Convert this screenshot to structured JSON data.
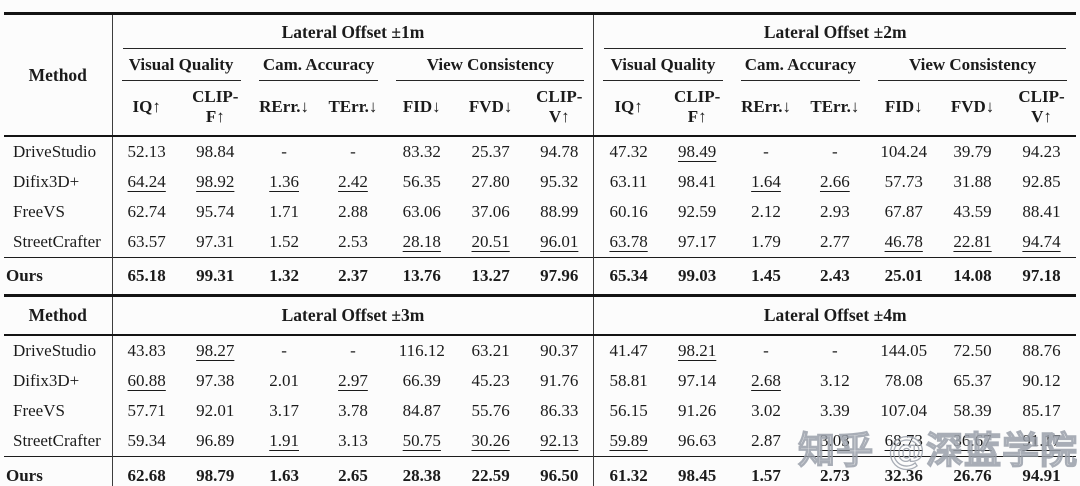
{
  "watermark": "知乎 @深蓝学院",
  "metrics": [
    "IQ↑",
    "CLIP-F↑",
    "RErr.↓",
    "TErr.↓",
    "FID↓",
    "FVD↓",
    "CLIP-V↑"
  ],
  "subgroups": [
    {
      "label": "Visual Quality",
      "span": 2
    },
    {
      "label": "Cam. Accuracy",
      "span": 2
    },
    {
      "label": "View Consistency",
      "span": 3
    }
  ],
  "sections": [
    {
      "method_header": "Method",
      "show_subheaders": true,
      "group_titles": [
        "Lateral Offset ±1m",
        "Lateral Offset ±2m"
      ],
      "rows": [
        {
          "method": "DriveStudio",
          "values": [
            "52.13",
            "98.84",
            "-",
            "-",
            "83.32",
            "25.37",
            "94.78",
            "47.32",
            "98.49",
            "-",
            "-",
            "104.24",
            "39.79",
            "94.23"
          ],
          "underline": [
            8
          ]
        },
        {
          "method": "Difix3D+",
          "values": [
            "64.24",
            "98.92",
            "1.36",
            "2.42",
            "56.35",
            "27.80",
            "95.32",
            "63.11",
            "98.41",
            "1.64",
            "2.66",
            "57.73",
            "31.88",
            "92.85"
          ],
          "underline": [
            0,
            1,
            2,
            3,
            9,
            10
          ]
        },
        {
          "method": "FreeVS",
          "values": [
            "62.74",
            "95.74",
            "1.71",
            "2.88",
            "63.06",
            "37.06",
            "88.99",
            "60.16",
            "92.59",
            "2.12",
            "2.93",
            "67.87",
            "43.59",
            "88.41"
          ],
          "underline": []
        },
        {
          "method": "StreetCrafter",
          "values": [
            "63.57",
            "97.31",
            "1.52",
            "2.53",
            "28.18",
            "20.51",
            "96.01",
            "63.78",
            "97.17",
            "1.79",
            "2.77",
            "46.78",
            "22.81",
            "94.74"
          ],
          "underline": [
            4,
            5,
            6,
            7,
            11,
            12,
            13
          ]
        }
      ],
      "ours": {
        "method": "Ours",
        "values": [
          "65.18",
          "99.31",
          "1.32",
          "2.37",
          "13.76",
          "13.27",
          "97.96",
          "65.34",
          "99.03",
          "1.45",
          "2.43",
          "25.01",
          "14.08",
          "97.18"
        ],
        "underline": []
      }
    },
    {
      "method_header": "Method",
      "show_subheaders": false,
      "group_titles": [
        "Lateral Offset ±3m",
        "Lateral Offset ±4m"
      ],
      "rows": [
        {
          "method": "DriveStudio",
          "values": [
            "43.83",
            "98.27",
            "-",
            "-",
            "116.12",
            "63.21",
            "90.37",
            "41.47",
            "98.21",
            "-",
            "-",
            "144.05",
            "72.50",
            "88.76"
          ],
          "underline": [
            1,
            8
          ]
        },
        {
          "method": "Difix3D+",
          "values": [
            "60.88",
            "97.38",
            "2.01",
            "2.97",
            "66.39",
            "45.23",
            "91.76",
            "58.81",
            "97.14",
            "2.68",
            "3.12",
            "78.08",
            "65.37",
            "90.12"
          ],
          "underline": [
            0,
            3,
            9
          ]
        },
        {
          "method": "FreeVS",
          "values": [
            "57.71",
            "92.01",
            "3.17",
            "3.78",
            "84.87",
            "55.76",
            "86.33",
            "56.15",
            "91.26",
            "3.02",
            "3.39",
            "107.04",
            "58.39",
            "85.17"
          ],
          "underline": []
        },
        {
          "method": "StreetCrafter",
          "values": [
            "59.34",
            "96.89",
            "1.91",
            "3.13",
            "50.75",
            "30.26",
            "92.13",
            "59.89",
            "96.63",
            "2.87",
            "3.03",
            "68.73",
            "36.67",
            "91.17"
          ],
          "underline": [
            2,
            4,
            5,
            6,
            7,
            10,
            11,
            12,
            13
          ]
        }
      ],
      "ours": {
        "method": "Ours",
        "values": [
          "62.68",
          "98.79",
          "1.63",
          "2.65",
          "28.38",
          "22.59",
          "96.50",
          "61.32",
          "98.45",
          "1.57",
          "2.73",
          "32.36",
          "26.76",
          "94.91"
        ],
        "underline": []
      }
    }
  ]
}
